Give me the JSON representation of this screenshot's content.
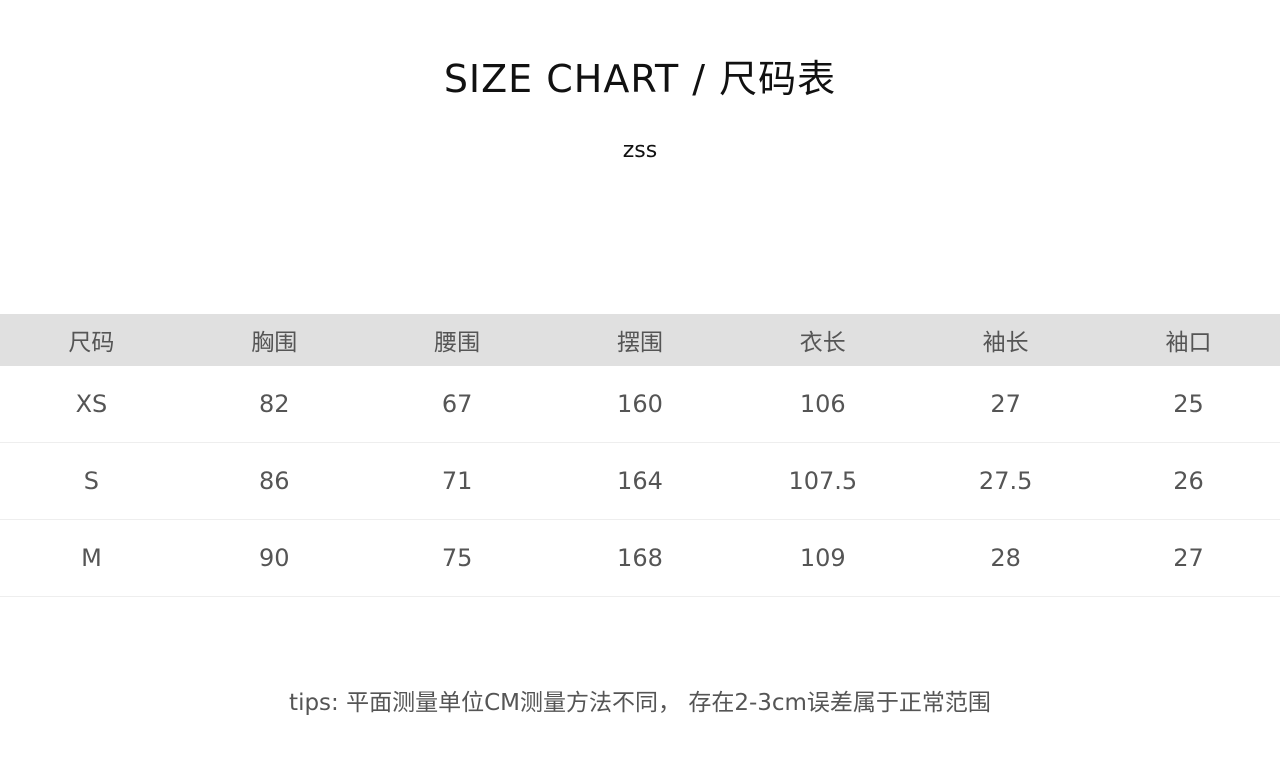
{
  "title": "SIZE CHART / 尺码表",
  "subtitle": "zss",
  "table": {
    "headers": [
      "尺码",
      "胸围",
      "腰围",
      "摆围",
      "衣长",
      "袖长",
      "袖口"
    ],
    "rows": [
      [
        "XS",
        "82",
        "67",
        "160",
        "106",
        "27",
        "25"
      ],
      [
        "S",
        "86",
        "71",
        "164",
        "107.5",
        "27.5",
        "26"
      ],
      [
        "M",
        "90",
        "75",
        "168",
        "109",
        "28",
        "27"
      ]
    ]
  },
  "tips": "tips: 平面测量单位CM测量方法不同， 存在2-3cm误差属于正常范围"
}
